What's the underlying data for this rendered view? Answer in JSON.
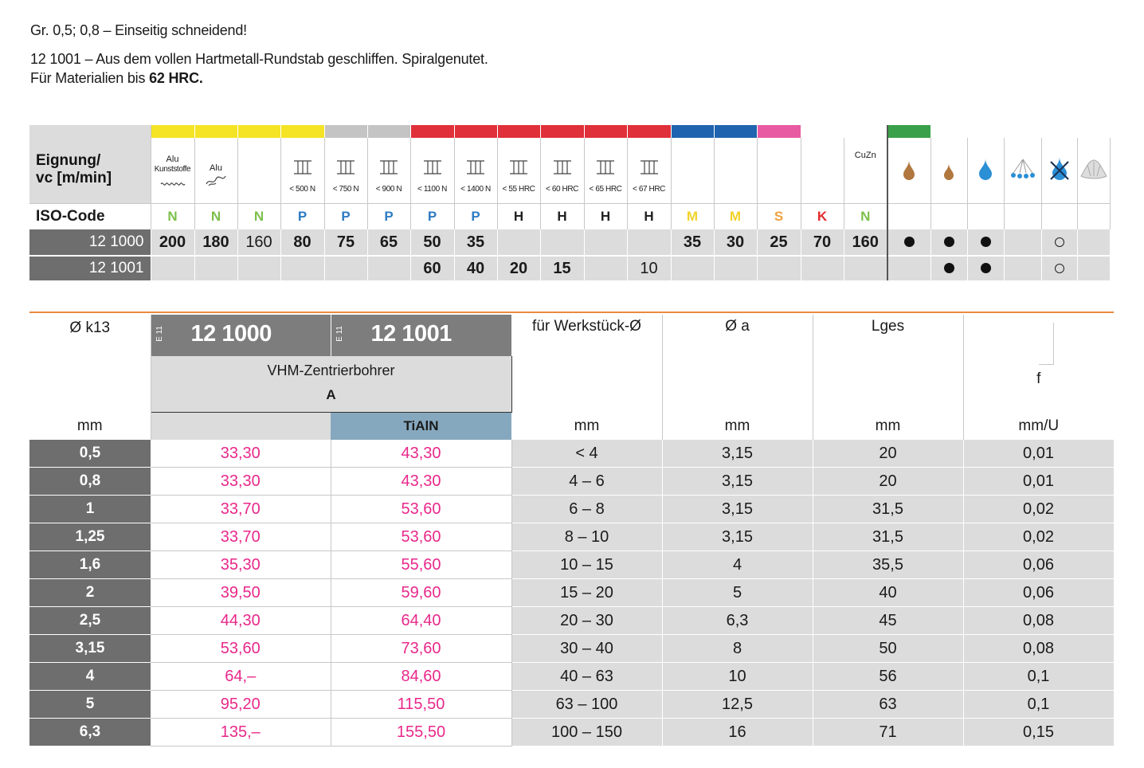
{
  "intro": {
    "line1": "Gr. 0,5; 0,8 – Einseitig schneidend!",
    "line2": "12 1001 – Aus dem vollen Hartmetall-Rundstab geschliffen. Spiralgenutet.",
    "line3_prefix": "Für Materialien bis ",
    "line3_bold": "62 HRC."
  },
  "suitability": {
    "label_top": "Eignung/",
    "label_bottom": "vc [m/min]",
    "iso_label": "ISO-Code",
    "colors": {
      "yellow": "#f5e425",
      "gray": "#c4c4c4",
      "red": "#e0303a",
      "blue": "#1f64ae",
      "pink": "#e85aa2",
      "green": "#3aa04a",
      "iso_N": "#7cc04a",
      "iso_P": "#2e7bc2",
      "iso_H": "#222222",
      "iso_M": "#f2d22a",
      "iso_S": "#f0a040",
      "iso_K": "#e22b2b"
    },
    "columns": [
      {
        "top": "Alu",
        "sub": "Kunststoffe",
        "icon": "plastic-shavings-icon",
        "iso": "N",
        "bar": "yellow"
      },
      {
        "top": "Alu",
        "sub": "",
        "icon": "aluminium-chips-icon",
        "iso": "N",
        "bar": "yellow"
      },
      {
        "top": "",
        "sub": "",
        "icon": "",
        "iso": "N",
        "bar": "yellow"
      },
      {
        "top": "",
        "sub": "< 500 N",
        "icon": "steel-beam-icon",
        "iso": "P",
        "bar": "yellow"
      },
      {
        "top": "",
        "sub": "< 750 N",
        "icon": "steel-beam-icon",
        "iso": "P",
        "bar": "gray"
      },
      {
        "top": "",
        "sub": "< 900 N",
        "icon": "steel-beam-icon",
        "iso": "P",
        "bar": "gray"
      },
      {
        "top": "",
        "sub": "< 1100 N",
        "icon": "steel-beam-icon",
        "iso": "P",
        "bar": "red"
      },
      {
        "top": "",
        "sub": "< 1400 N",
        "icon": "steel-beam-icon",
        "iso": "P",
        "bar": "red"
      },
      {
        "top": "",
        "sub": "< 55 HRC",
        "icon": "steel-beam-icon",
        "iso": "H",
        "bar": "red"
      },
      {
        "top": "",
        "sub": "< 60 HRC",
        "icon": "steel-beam-icon",
        "iso": "H",
        "bar": "red"
      },
      {
        "top": "",
        "sub": "< 65 HRC",
        "icon": "steel-beam-icon",
        "iso": "H",
        "bar": "red"
      },
      {
        "top": "",
        "sub": "< 67 HRC",
        "icon": "steel-beam-icon",
        "iso": "H",
        "bar": "red"
      },
      {
        "top": "",
        "sub": "",
        "icon": "",
        "iso": "M",
        "bar": "blue"
      },
      {
        "top": "",
        "sub": "",
        "icon": "",
        "iso": "M",
        "bar": "blue"
      },
      {
        "top": "",
        "sub": "",
        "icon": "",
        "iso": "S",
        "bar": "pink"
      },
      {
        "top": "",
        "sub": "",
        "icon": "",
        "iso": "K",
        "bar": "none"
      },
      {
        "top": "CuZn",
        "sub": "",
        "icon": "",
        "iso": "N",
        "bar": "none"
      },
      {
        "top": "",
        "sub": "",
        "icon": "oil-drop-icon",
        "iso": "",
        "bar": "green"
      },
      {
        "top": "",
        "sub": "",
        "icon": "oil-drop-small-icon",
        "iso": "",
        "bar": "none"
      },
      {
        "top": "",
        "sub": "",
        "icon": "water-drop-icon",
        "iso": "",
        "bar": "none"
      },
      {
        "top": "",
        "sub": "",
        "icon": "spray-mist-icon",
        "iso": "",
        "bar": "none"
      },
      {
        "top": "",
        "sub": "",
        "icon": "no-coolant-icon",
        "iso": "",
        "bar": "none"
      },
      {
        "top": "",
        "sub": "",
        "icon": "air-blast-icon",
        "iso": "",
        "bar": "none"
      }
    ],
    "rows": [
      {
        "label": "12 1000",
        "values": [
          "200",
          "180",
          "160",
          "80",
          "75",
          "65",
          "50",
          "35",
          "",
          "",
          "",
          "",
          "35",
          "30",
          "25",
          "70",
          "160",
          "dot",
          "dot",
          "dot",
          "",
          "ring",
          ""
        ]
      },
      {
        "label": "12 1001",
        "values": [
          "",
          "",
          "",
          "",
          "",
          "",
          "60",
          "40",
          "20",
          "15",
          "",
          "10",
          "",
          "",
          "",
          "",
          "",
          "",
          "dot",
          "dot",
          "",
          "ring",
          ""
        ]
      }
    ]
  },
  "main": {
    "col_dia": "Ø k13",
    "prod1": "12 1000",
    "prod2": "12 1001",
    "e_mark": "E 11",
    "tool_name": "VHM-Zentrierbohrer",
    "form": "A",
    "coating": "TiAlN",
    "col_work": "für Werkstück-Ø",
    "col_a": "Ø a",
    "col_l": "Lges",
    "col_f": "f",
    "unit_mm": "mm",
    "unit_f": "mm/U",
    "rows": [
      {
        "d": "0,5",
        "p1": "33,30",
        "p2": "43,30",
        "w": "< 4",
        "a": "3,15",
        "l": "20",
        "f": "0,01"
      },
      {
        "d": "0,8",
        "p1": "33,30",
        "p2": "43,30",
        "w": "4 – 6",
        "a": "3,15",
        "l": "20",
        "f": "0,01"
      },
      {
        "d": "1",
        "p1": "33,70",
        "p2": "53,60",
        "w": "6 – 8",
        "a": "3,15",
        "l": "31,5",
        "f": "0,02"
      },
      {
        "d": "1,25",
        "p1": "33,70",
        "p2": "53,60",
        "w": "8 – 10",
        "a": "3,15",
        "l": "31,5",
        "f": "0,02"
      },
      {
        "d": "1,6",
        "p1": "35,30",
        "p2": "55,60",
        "w": "10 – 15",
        "a": "4",
        "l": "35,5",
        "f": "0,06"
      },
      {
        "d": "2",
        "p1": "39,50",
        "p2": "59,60",
        "w": "15 – 20",
        "a": "5",
        "l": "40",
        "f": "0,06"
      },
      {
        "d": "2,5",
        "p1": "44,30",
        "p2": "64,40",
        "w": "20 – 30",
        "a": "6,3",
        "l": "45",
        "f": "0,08"
      },
      {
        "d": "3,15",
        "p1": "53,60",
        "p2": "73,60",
        "w": "30 – 40",
        "a": "8",
        "l": "50",
        "f": "0,08"
      },
      {
        "d": "4",
        "p1": "64,–",
        "p2": "84,60",
        "w": "40 – 63",
        "a": "10",
        "l": "56",
        "f": "0,1"
      },
      {
        "d": "5",
        "p1": "95,20",
        "p2": "115,50",
        "w": "63 – 100",
        "a": "12,5",
        "l": "63",
        "f": "0,1"
      },
      {
        "d": "6,3",
        "p1": "135,–",
        "p2": "155,50",
        "w": "100 – 150",
        "a": "16",
        "l": "71",
        "f": "0,15"
      }
    ]
  }
}
